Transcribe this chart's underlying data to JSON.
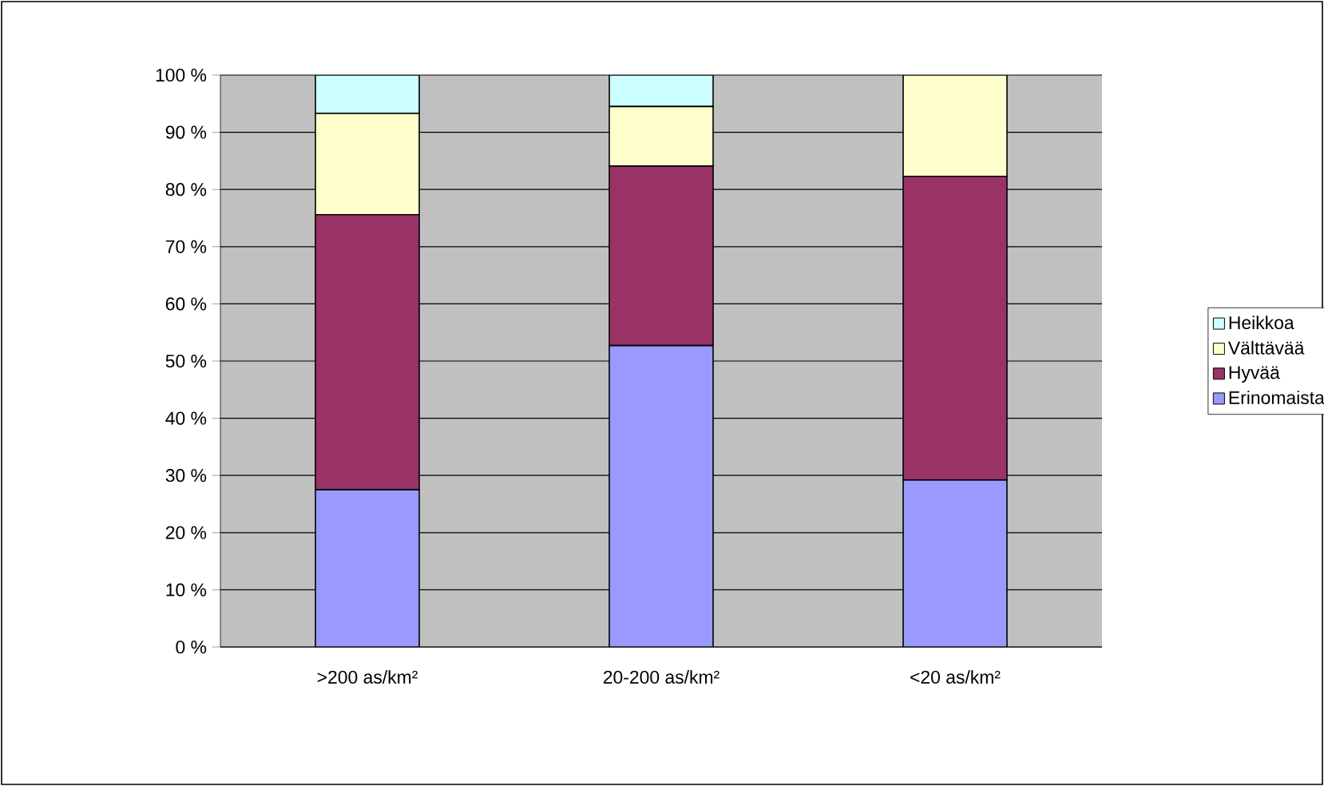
{
  "chart_data": {
    "type": "bar",
    "stacked": true,
    "categories": [
      ">200 as/km²",
      "20-200 as/km²",
      "<20 as/km²"
    ],
    "series": [
      {
        "name": "Erinomaista",
        "color": "#9999ff",
        "values": [
          27.5,
          52.7,
          29.2
        ]
      },
      {
        "name": "Hyvää",
        "color": "#993366",
        "values": [
          48.1,
          31.4,
          53.1
        ]
      },
      {
        "name": "Välttävää",
        "color": "#ffffcc",
        "values": [
          17.7,
          10.4,
          17.7
        ]
      },
      {
        "name": "Heikkoa",
        "color": "#ccffff",
        "values": [
          6.7,
          5.5,
          0
        ]
      }
    ],
    "ylim": [
      0,
      100
    ],
    "yticks": [
      {
        "value": 0,
        "label": "0 %"
      },
      {
        "value": 10,
        "label": "10 %"
      },
      {
        "value": 20,
        "label": "20 %"
      },
      {
        "value": 30,
        "label": "30 %"
      },
      {
        "value": 40,
        "label": "40 %"
      },
      {
        "value": 50,
        "label": "50 %"
      },
      {
        "value": 60,
        "label": "60 %"
      },
      {
        "value": 70,
        "label": "70 %"
      },
      {
        "value": 80,
        "label": "80 %"
      },
      {
        "value": 90,
        "label": "90 %"
      },
      {
        "value": 100,
        "label": "100 %"
      }
    ],
    "grid": "y",
    "legend": "right"
  }
}
